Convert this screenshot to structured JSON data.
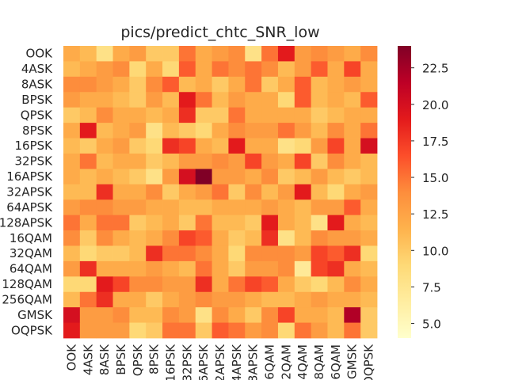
{
  "chart_data": {
    "type": "heatmap",
    "title": "pics/predict_chtc_SNR_low",
    "xlabel": "",
    "ylabel": "",
    "categories": [
      "OOK",
      "4ASK",
      "8ASK",
      "BPSK",
      "QPSK",
      "8PSK",
      "16PSK",
      "32PSK",
      "16APSK",
      "32APSK",
      "64APSK",
      "128APSK",
      "16QAM",
      "32QAM",
      "64QAM",
      "128QAM",
      "256QAM",
      "GMSK",
      "OQPSK"
    ],
    "x_tick_labels": [
      "OOK",
      "4ASK",
      "8ASK",
      "BPSK",
      "QPSK",
      "8PSK",
      "16PSK",
      "32PSK",
      "16APSK",
      "32APSK",
      "64APSK",
      "128APSK",
      "16QAM",
      "32QAM",
      "64QAM",
      "128QAM",
      "256QAM",
      "GMSK",
      "OQPSK"
    ],
    "y_tick_labels": [
      "OOK",
      "4ASK",
      "8ASK",
      "BPSK",
      "QPSK",
      "8PSK",
      "16PSK",
      "32PSK",
      "16APSK",
      "32APSK",
      "64APSK",
      "128APSK",
      "16QAM",
      "32QAM",
      "64QAM",
      "128QAM",
      "256QAM",
      "GMSK",
      "OQPSK"
    ],
    "colormap": "YlOrRd",
    "colorbar": {
      "vmin": 4,
      "vmax": 24,
      "ticks": [
        5.0,
        7.5,
        10.0,
        12.5,
        15.0,
        17.5,
        20.0,
        22.5
      ]
    },
    "values": [
      [
        12,
        11,
        8,
        12,
        13,
        10,
        10,
        15,
        12,
        13,
        14,
        8,
        15,
        19,
        13,
        14,
        13,
        12,
        14
      ],
      [
        11,
        12,
        13,
        14,
        9,
        12,
        9,
        16,
        12,
        15,
        14,
        15,
        14,
        11,
        13,
        16,
        12,
        17,
        12
      ],
      [
        14,
        14,
        13,
        12,
        10,
        14,
        16,
        11,
        12,
        10,
        12,
        15,
        10,
        12,
        16,
        11,
        12,
        13,
        12
      ],
      [
        13,
        12,
        12,
        11,
        10,
        13,
        11,
        19,
        15,
        11,
        13,
        12,
        12,
        9,
        16,
        11,
        12,
        11,
        16
      ],
      [
        10,
        11,
        14,
        12,
        12,
        11,
        12,
        18,
        10,
        10,
        15,
        12,
        12,
        12,
        12,
        10,
        11,
        12,
        12
      ],
      [
        12,
        19,
        11,
        12,
        13,
        8,
        11,
        10,
        9,
        12,
        14,
        13,
        13,
        15,
        13,
        11,
        14,
        12,
        15
      ],
      [
        11,
        10,
        12,
        13,
        10,
        9,
        18,
        17,
        12,
        11,
        19,
        12,
        12,
        8,
        9,
        13,
        17,
        12,
        20
      ],
      [
        12,
        15,
        11,
        12,
        12,
        10,
        11,
        13,
        13,
        14,
        13,
        17,
        13,
        12,
        17,
        10,
        14,
        12,
        11
      ],
      [
        12,
        11,
        12,
        11,
        10,
        8,
        13,
        20,
        24,
        13,
        13,
        12,
        14,
        10,
        11,
        13,
        11,
        10,
        11
      ],
      [
        11,
        11,
        18,
        12,
        12,
        14,
        10,
        12,
        13,
        15,
        10,
        14,
        11,
        13,
        19,
        11,
        9,
        12,
        13
      ],
      [
        13,
        14,
        14,
        13,
        13,
        12,
        12,
        11,
        11,
        12,
        12,
        12,
        13,
        12,
        11,
        13,
        13,
        16,
        12
      ],
      [
        15,
        12,
        15,
        15,
        10,
        11,
        12,
        10,
        15,
        11,
        11,
        10,
        19,
        12,
        11,
        8,
        19,
        12,
        11
      ],
      [
        14,
        10,
        14,
        12,
        11,
        12,
        14,
        17,
        16,
        12,
        10,
        11,
        18,
        8,
        11,
        14,
        13,
        13,
        12
      ],
      [
        11,
        9,
        10,
        10,
        11,
        18,
        15,
        15,
        14,
        12,
        9,
        14,
        14,
        14,
        13,
        17,
        16,
        18,
        9
      ],
      [
        13,
        18,
        12,
        12,
        12,
        13,
        12,
        11,
        15,
        12,
        10,
        13,
        13,
        14,
        7,
        17,
        18,
        12,
        11
      ],
      [
        9,
        9,
        19,
        17,
        14,
        14,
        13,
        13,
        18,
        12,
        15,
        17,
        16,
        12,
        10,
        9,
        11,
        14,
        12
      ],
      [
        11,
        15,
        18,
        12,
        12,
        10,
        12,
        13,
        14,
        13,
        13,
        12,
        11,
        11,
        12,
        13,
        12,
        12,
        11
      ],
      [
        20,
        13,
        13,
        14,
        11,
        11,
        14,
        13,
        8,
        14,
        12,
        10,
        14,
        17,
        12,
        12,
        11,
        22,
        10
      ],
      [
        19,
        13,
        13,
        13,
        9,
        10,
        15,
        15,
        10,
        16,
        15,
        13,
        14,
        9,
        15,
        13,
        11,
        15,
        10
      ]
    ]
  }
}
